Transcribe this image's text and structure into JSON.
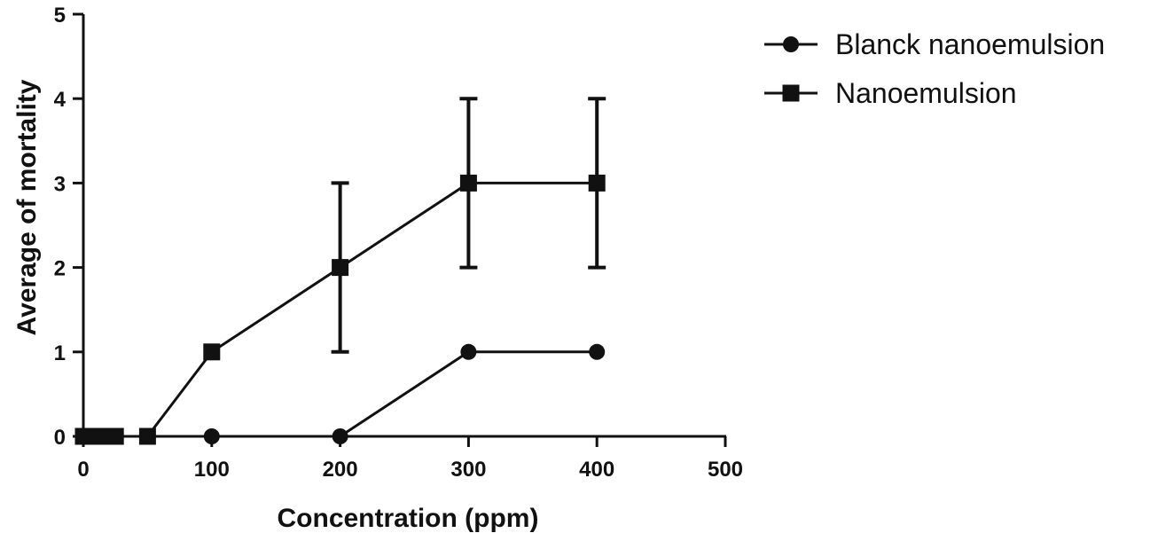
{
  "chart_data": {
    "type": "line",
    "xlabel": "Concentration (ppm)",
    "ylabel": "Average of mortality",
    "xlim": [
      0,
      500
    ],
    "ylim": [
      0,
      5
    ],
    "x_ticks": [
      "0",
      "100",
      "200",
      "300",
      "400",
      "500"
    ],
    "y_ticks": [
      "0",
      "1",
      "2",
      "3",
      "4",
      "5"
    ],
    "x_tick_values": [
      0,
      100,
      200,
      300,
      400,
      500
    ],
    "y_tick_values": [
      0,
      1,
      2,
      3,
      4,
      5
    ],
    "grid": false,
    "legend_position": "top-right",
    "series": [
      {
        "name": "Blanck nanoemulsion",
        "marker": "circle",
        "color": "#111111",
        "points": [
          {
            "x": 0,
            "y": 0
          },
          {
            "x": 100,
            "y": 0
          },
          {
            "x": 200,
            "y": 0
          },
          {
            "x": 300,
            "y": 1
          },
          {
            "x": 400,
            "y": 1
          }
        ]
      },
      {
        "name": "Nanoemulsion",
        "marker": "square",
        "color": "#111111",
        "points": [
          {
            "x": 0,
            "y": 0
          },
          {
            "x": 12.5,
            "y": 0
          },
          {
            "x": 25,
            "y": 0
          },
          {
            "x": 50,
            "y": 0
          },
          {
            "x": 100,
            "y": 1
          },
          {
            "x": 200,
            "y": 2,
            "err_low": 1,
            "err_high": 3
          },
          {
            "x": 300,
            "y": 3,
            "err_low": 2,
            "err_high": 4
          },
          {
            "x": 400,
            "y": 3,
            "err_low": 2,
            "err_high": 4
          }
        ]
      }
    ]
  }
}
